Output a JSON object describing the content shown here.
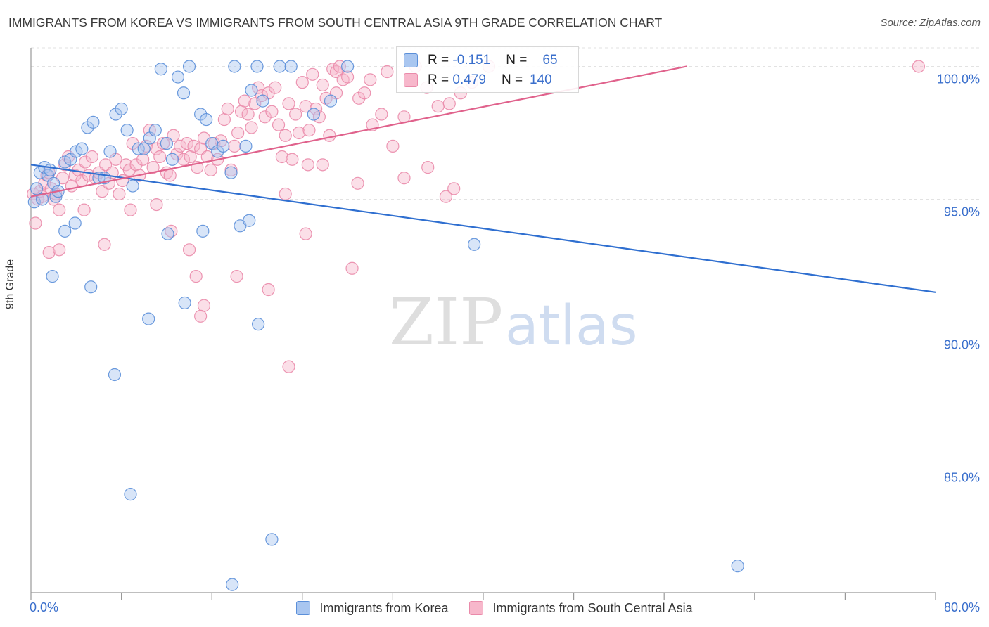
{
  "title": "IMMIGRANTS FROM KOREA VS IMMIGRANTS FROM SOUTH CENTRAL ASIA 9TH GRADE CORRELATION CHART",
  "source": "Source: ZipAtlas.com",
  "watermark": {
    "zip": "ZIP",
    "atlas": "atlas"
  },
  "colors": {
    "korea_fill": "#a9c6f0",
    "korea_stroke": "#5b8fd9",
    "korea_line": "#2f6fd0",
    "sca_fill": "#f7b7cb",
    "sca_stroke": "#ea8aaa",
    "sca_line": "#e0628c",
    "tick_label": "#3a6fcc",
    "grid": "#e2e2e2"
  },
  "stats": [
    {
      "r_label": "R =",
      "r_value": "-0.151",
      "n_label": "N =",
      "n_value": "65"
    },
    {
      "r_label": "R =",
      "r_value": "0.479",
      "n_label": "N =",
      "n_value": "140"
    }
  ],
  "chart_data": {
    "type": "scatter",
    "title": "IMMIGRANTS FROM KOREA VS IMMIGRANTS FROM SOUTH CENTRAL ASIA 9TH GRADE CORRELATION CHART",
    "xlabel": "",
    "ylabel": "9th Grade",
    "xlim": [
      0,
      80
    ],
    "ylim": [
      80.2,
      100.7
    ],
    "x_tick_labels": [
      "0.0%",
      "80.0%"
    ],
    "y_ticks": [
      85,
      90,
      95,
      100
    ],
    "y_tick_labels": [
      "85.0%",
      "90.0%",
      "95.0%",
      "100.0%"
    ],
    "grid": true,
    "legend_position": "bottom-center",
    "series": [
      {
        "name": "Immigrants from Korea",
        "color": "#5b8fd9",
        "trend": {
          "x": [
            0,
            80
          ],
          "y": [
            96.3,
            91.5
          ]
        },
        "points": [
          [
            0.3,
            94.9
          ],
          [
            0.5,
            95.4
          ],
          [
            0.8,
            96.0
          ],
          [
            1.0,
            95.0
          ],
          [
            1.2,
            96.2
          ],
          [
            1.5,
            95.9
          ],
          [
            1.7,
            96.1
          ],
          [
            2.0,
            95.6
          ],
          [
            2.2,
            95.1
          ],
          [
            2.4,
            95.3
          ],
          [
            3.0,
            96.4
          ],
          [
            3.5,
            96.5
          ],
          [
            4.0,
            96.8
          ],
          [
            4.5,
            96.9
          ],
          [
            5.0,
            97.7
          ],
          [
            5.5,
            97.9
          ],
          [
            6.0,
            95.8
          ],
          [
            6.5,
            95.8
          ],
          [
            7.0,
            96.8
          ],
          [
            7.5,
            98.2
          ],
          [
            8.0,
            98.4
          ],
          [
            8.5,
            97.6
          ],
          [
            9.0,
            95.5
          ],
          [
            9.5,
            96.9
          ],
          [
            10.0,
            96.9
          ],
          [
            10.5,
            97.3
          ],
          [
            11.0,
            97.6
          ],
          [
            11.5,
            99.9
          ],
          [
            12.0,
            97.1
          ],
          [
            12.5,
            96.5
          ],
          [
            13.0,
            99.6
          ],
          [
            13.5,
            99.0
          ],
          [
            14.0,
            100.0
          ],
          [
            15.0,
            98.2
          ],
          [
            15.5,
            98.0
          ],
          [
            16.0,
            97.1
          ],
          [
            16.5,
            96.8
          ],
          [
            17.0,
            97.0
          ],
          [
            18.0,
            100.0
          ],
          [
            19.0,
            97.0
          ],
          [
            19.5,
            99.1
          ],
          [
            20.0,
            100.0
          ],
          [
            20.5,
            98.7
          ],
          [
            22.0,
            100.0
          ],
          [
            23.0,
            100.0
          ],
          [
            26.5,
            98.7
          ],
          [
            28.0,
            100.0
          ],
          [
            25.0,
            98.2
          ],
          [
            1.9,
            92.1
          ],
          [
            3.0,
            93.8
          ],
          [
            3.9,
            94.1
          ],
          [
            5.3,
            91.7
          ],
          [
            7.4,
            88.4
          ],
          [
            8.8,
            83.9
          ],
          [
            10.4,
            90.5
          ],
          [
            12.1,
            93.7
          ],
          [
            13.6,
            91.1
          ],
          [
            15.2,
            93.8
          ],
          [
            17.7,
            96.0
          ],
          [
            18.5,
            94.0
          ],
          [
            19.3,
            94.2
          ],
          [
            20.1,
            90.3
          ],
          [
            21.3,
            82.2
          ],
          [
            17.8,
            80.5
          ],
          [
            39.2,
            93.3
          ],
          [
            62.5,
            81.2
          ]
        ]
      },
      {
        "name": "Immigrants from South Central Asia",
        "color": "#ea8aaa",
        "trend": {
          "x": [
            0,
            58
          ],
          "y": [
            95.1,
            100.0
          ]
        },
        "points": [
          [
            0.2,
            95.2
          ],
          [
            0.4,
            94.1
          ],
          [
            0.6,
            95.0
          ],
          [
            0.8,
            95.3
          ],
          [
            1.0,
            95.1
          ],
          [
            1.2,
            95.6
          ],
          [
            1.4,
            95.9
          ],
          [
            1.6,
            96.0
          ],
          [
            1.8,
            95.4
          ],
          [
            2.0,
            95.0
          ],
          [
            2.2,
            95.2
          ],
          [
            2.5,
            94.6
          ],
          [
            2.8,
            95.8
          ],
          [
            3.0,
            96.3
          ],
          [
            3.3,
            96.6
          ],
          [
            3.6,
            95.5
          ],
          [
            3.9,
            95.9
          ],
          [
            4.2,
            96.1
          ],
          [
            4.5,
            95.7
          ],
          [
            4.8,
            96.4
          ],
          [
            5.1,
            95.9
          ],
          [
            5.4,
            96.6
          ],
          [
            5.7,
            95.8
          ],
          [
            6.0,
            96.0
          ],
          [
            6.3,
            95.3
          ],
          [
            6.6,
            96.3
          ],
          [
            6.9,
            95.6
          ],
          [
            7.2,
            96.0
          ],
          [
            7.5,
            96.5
          ],
          [
            7.8,
            95.2
          ],
          [
            8.1,
            95.7
          ],
          [
            8.4,
            96.3
          ],
          [
            8.7,
            96.1
          ],
          [
            9.0,
            97.1
          ],
          [
            9.3,
            96.3
          ],
          [
            9.6,
            95.9
          ],
          [
            9.9,
            96.5
          ],
          [
            10.2,
            97.0
          ],
          [
            10.5,
            97.6
          ],
          [
            10.8,
            96.2
          ],
          [
            11.1,
            96.9
          ],
          [
            11.4,
            96.6
          ],
          [
            11.7,
            97.1
          ],
          [
            12.0,
            96.0
          ],
          [
            12.3,
            95.9
          ],
          [
            12.6,
            97.4
          ],
          [
            12.9,
            96.7
          ],
          [
            13.2,
            97.0
          ],
          [
            13.5,
            96.5
          ],
          [
            13.8,
            97.1
          ],
          [
            14.1,
            96.6
          ],
          [
            14.4,
            97.0
          ],
          [
            14.7,
            96.2
          ],
          [
            15.0,
            96.9
          ],
          [
            15.3,
            97.3
          ],
          [
            15.6,
            96.6
          ],
          [
            15.9,
            96.1
          ],
          [
            16.2,
            97.1
          ],
          [
            16.5,
            96.5
          ],
          [
            16.8,
            97.2
          ],
          [
            17.1,
            98.0
          ],
          [
            17.4,
            98.4
          ],
          [
            17.7,
            96.1
          ],
          [
            18.0,
            97.0
          ],
          [
            18.3,
            97.5
          ],
          [
            18.6,
            98.3
          ],
          [
            18.9,
            98.7
          ],
          [
            19.2,
            98.2
          ],
          [
            19.5,
            97.7
          ],
          [
            19.8,
            98.6
          ],
          [
            20.1,
            99.2
          ],
          [
            20.4,
            98.9
          ],
          [
            20.7,
            98.1
          ],
          [
            21.0,
            99.0
          ],
          [
            21.3,
            98.3
          ],
          [
            21.6,
            99.2
          ],
          [
            21.9,
            97.8
          ],
          [
            22.2,
            96.6
          ],
          [
            22.5,
            97.4
          ],
          [
            22.8,
            98.6
          ],
          [
            23.1,
            96.5
          ],
          [
            23.4,
            98.2
          ],
          [
            23.7,
            97.5
          ],
          [
            24.0,
            99.4
          ],
          [
            24.3,
            98.5
          ],
          [
            24.6,
            97.6
          ],
          [
            24.9,
            99.7
          ],
          [
            25.2,
            98.4
          ],
          [
            25.5,
            98.1
          ],
          [
            25.8,
            99.3
          ],
          [
            26.1,
            98.8
          ],
          [
            26.4,
            97.4
          ],
          [
            26.7,
            99.9
          ],
          [
            27.0,
            99.8
          ],
          [
            27.3,
            100.0
          ],
          [
            27.6,
            99.5
          ],
          [
            28.0,
            99.6
          ],
          [
            29.0,
            98.8
          ],
          [
            29.5,
            99.0
          ],
          [
            30.0,
            99.5
          ],
          [
            31.0,
            98.2
          ],
          [
            31.5,
            99.8
          ],
          [
            32.0,
            97.0
          ],
          [
            33.0,
            98.1
          ],
          [
            34.0,
            100.0
          ],
          [
            35.0,
            99.2
          ],
          [
            36.0,
            98.5
          ],
          [
            37.0,
            98.6
          ],
          [
            38.0,
            99.0
          ],
          [
            39.0,
            99.4
          ],
          [
            40.5,
            100.0
          ],
          [
            78.5,
            100.0
          ],
          [
            1.6,
            93.0
          ],
          [
            2.5,
            93.1
          ],
          [
            4.7,
            94.6
          ],
          [
            6.5,
            93.3
          ],
          [
            8.8,
            94.6
          ],
          [
            11.1,
            94.8
          ],
          [
            12.4,
            93.8
          ],
          [
            14.0,
            93.1
          ],
          [
            14.6,
            92.1
          ],
          [
            15.3,
            91.0
          ],
          [
            15.0,
            90.6
          ],
          [
            18.2,
            92.1
          ],
          [
            21.0,
            91.6
          ],
          [
            24.3,
            93.7
          ],
          [
            22.5,
            95.2
          ],
          [
            25.8,
            96.3
          ],
          [
            28.9,
            95.6
          ],
          [
            30.2,
            97.8
          ],
          [
            33.0,
            95.8
          ],
          [
            35.1,
            96.2
          ],
          [
            37.4,
            95.4
          ],
          [
            36.7,
            95.1
          ],
          [
            22.8,
            88.7
          ],
          [
            28.4,
            92.4
          ],
          [
            24.5,
            96.3
          ],
          [
            27.0,
            99.0
          ]
        ]
      }
    ]
  },
  "legend": {
    "korea": "Immigrants from Korea",
    "sca": "Immigrants from South Central Asia"
  }
}
